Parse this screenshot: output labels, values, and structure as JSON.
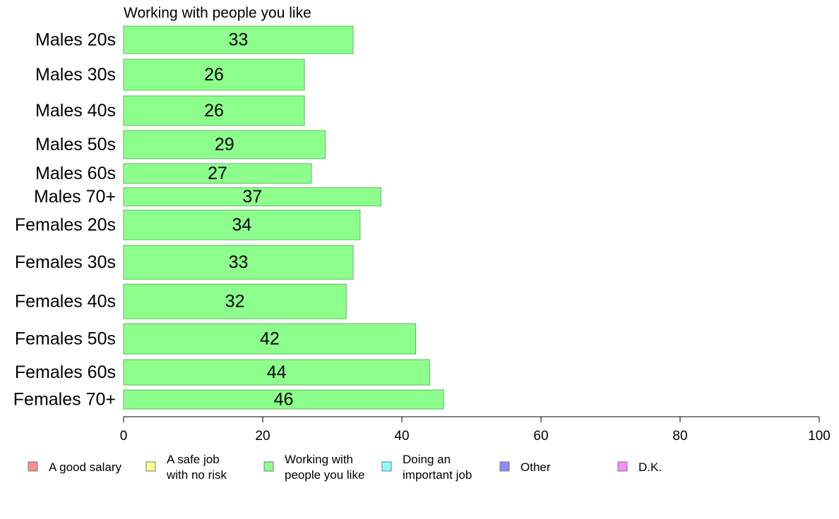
{
  "chart_data": {
    "type": "bar",
    "orientation": "horizontal",
    "title": "Working with people you like",
    "categories": [
      "Males 20s",
      "Males 30s",
      "Males 40s",
      "Males 50s",
      "Males 60s",
      "Males 70+",
      "Females 20s",
      "Females 30s",
      "Females 40s",
      "Females 50s",
      "Females 60s",
      "Females 70+"
    ],
    "values": [
      33,
      26,
      26,
      29,
      27,
      37,
      34,
      33,
      32,
      42,
      44,
      46
    ],
    "value_labels": [
      "33",
      "26",
      "26",
      "29",
      "27",
      "37",
      "34",
      "33",
      "32",
      "42",
      "44",
      "46"
    ],
    "bar_color": "#8cff8c",
    "bar_stroke": "#5fb85f",
    "xlim": [
      0,
      100
    ],
    "xticks": [
      0,
      20,
      40,
      60,
      80,
      100
    ],
    "xtick_labels": [
      "0",
      "20",
      "40",
      "60",
      "80",
      "100"
    ],
    "grid": false,
    "legend_position": "bottom",
    "legend": [
      {
        "lines": [
          "A good salary"
        ],
        "color": "#ff8c8c"
      },
      {
        "lines": [
          "A safe job",
          "with no risk"
        ],
        "color": "#ffff8c"
      },
      {
        "lines": [
          "Working with",
          "people you like"
        ],
        "color": "#8cff8c"
      },
      {
        "lines": [
          "Doing an",
          "important job"
        ],
        "color": "#8cffff"
      },
      {
        "lines": [
          "Other"
        ],
        "color": "#8c8cff"
      },
      {
        "lines": [
          "D.K."
        ],
        "color": "#ff8cff"
      }
    ]
  }
}
